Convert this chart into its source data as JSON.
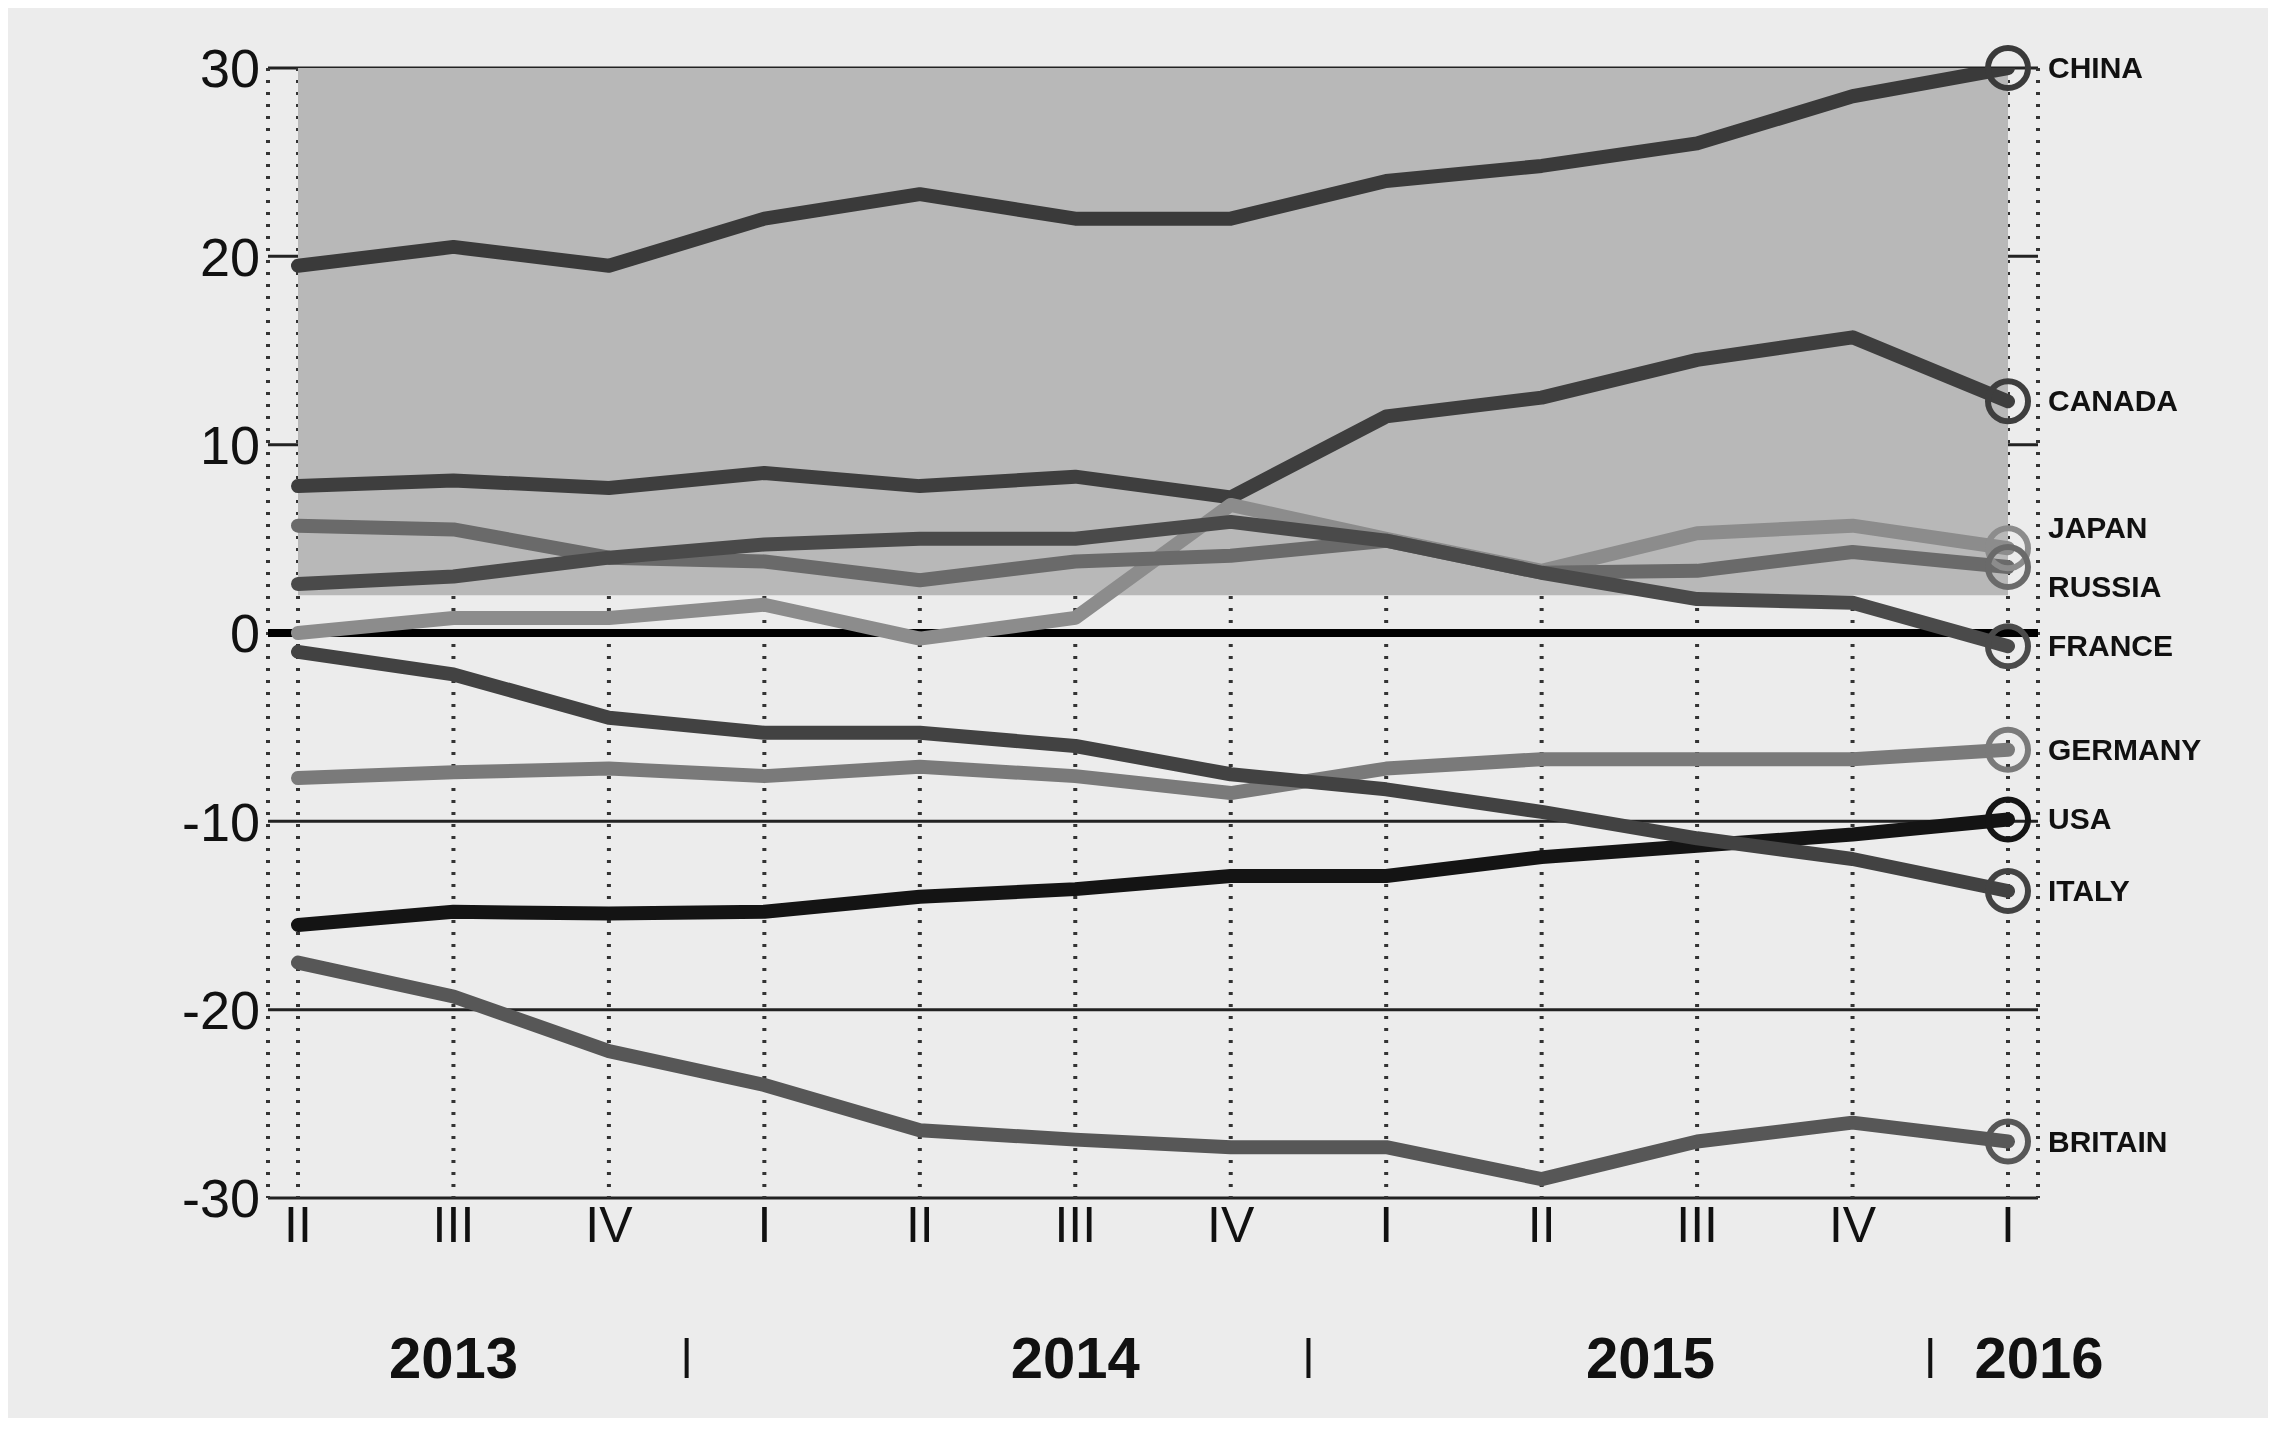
{
  "chart_data": {
    "type": "line",
    "categories": [
      "II",
      "III",
      "IV",
      "I",
      "II",
      "III",
      "IV",
      "I",
      "II",
      "III",
      "IV",
      "I"
    ],
    "ylim": [
      -30,
      30
    ],
    "yticks": [
      -30,
      -20,
      -10,
      0,
      10,
      20,
      30
    ],
    "grid": true,
    "marker": "none",
    "line_style": "solid",
    "bands": [
      {
        "axis": "y",
        "from": 2,
        "to": 30,
        "color": "#b8b8b8"
      }
    ],
    "ref_lines": [
      {
        "axis": "y",
        "value": 0,
        "color": "#000000"
      }
    ],
    "annotations": [
      "2013",
      "2014",
      "2015",
      "2016"
    ],
    "series": [
      {
        "name": "CHINA",
        "color": "#3a3a3a",
        "values": [
          19.5,
          20.5,
          19.5,
          22,
          23.3,
          22,
          22,
          24,
          24.8,
          26,
          28.5,
          30
        ]
      },
      {
        "name": "CANADA",
        "color": "#3e3e3e",
        "values": [
          7.8,
          8.1,
          7.7,
          8.5,
          7.8,
          8.3,
          7.2,
          11.5,
          12.5,
          14.5,
          15.7,
          12.3
        ]
      },
      {
        "name": "JAPAN",
        "color": "#8c8c8c",
        "values": [
          0,
          0.8,
          0.8,
          1.5,
          -0.3,
          0.8,
          6.8,
          5,
          3.3,
          5.3,
          5.7,
          4.5
        ]
      },
      {
        "name": "RUSSIA",
        "color": "#6a6a6a",
        "values": [
          5.7,
          5.5,
          4,
          3.8,
          2.8,
          3.8,
          4.1,
          4.9,
          3.2,
          3.3,
          4.3,
          3.5
        ]
      },
      {
        "name": "FRANCE",
        "color": "#4a4a4a",
        "values": [
          2.6,
          3,
          4,
          4.7,
          5,
          5,
          5.9,
          4.9,
          3.2,
          1.8,
          1.6,
          -0.7
        ]
      },
      {
        "name": "GERMANY",
        "color": "#7a7a7a",
        "values": [
          -7.7,
          -7.4,
          -7.2,
          -7.6,
          -7.1,
          -7.6,
          -8.5,
          -7.2,
          -6.7,
          -6.7,
          -6.7,
          -6.2
        ]
      },
      {
        "name": "USA",
        "color": "#141414",
        "values": [
          -15.5,
          -14.8,
          -14.9,
          -14.8,
          -14,
          -13.6,
          -12.9,
          -12.9,
          -11.9,
          -11.3,
          -10.7,
          -9.9
        ]
      },
      {
        "name": "ITALY",
        "color": "#424242",
        "values": [
          -1,
          -2.2,
          -4.5,
          -5.3,
          -5.3,
          -6,
          -7.5,
          -8.3,
          -9.5,
          -10.9,
          -12,
          -13.7
        ]
      },
      {
        "name": "BRITAIN",
        "color": "#575757",
        "values": [
          -17.5,
          -19.3,
          -22.2,
          -24,
          -26.4,
          -26.9,
          -27.3,
          -27.3,
          -29,
          -27,
          -26,
          -27
        ]
      }
    ]
  }
}
